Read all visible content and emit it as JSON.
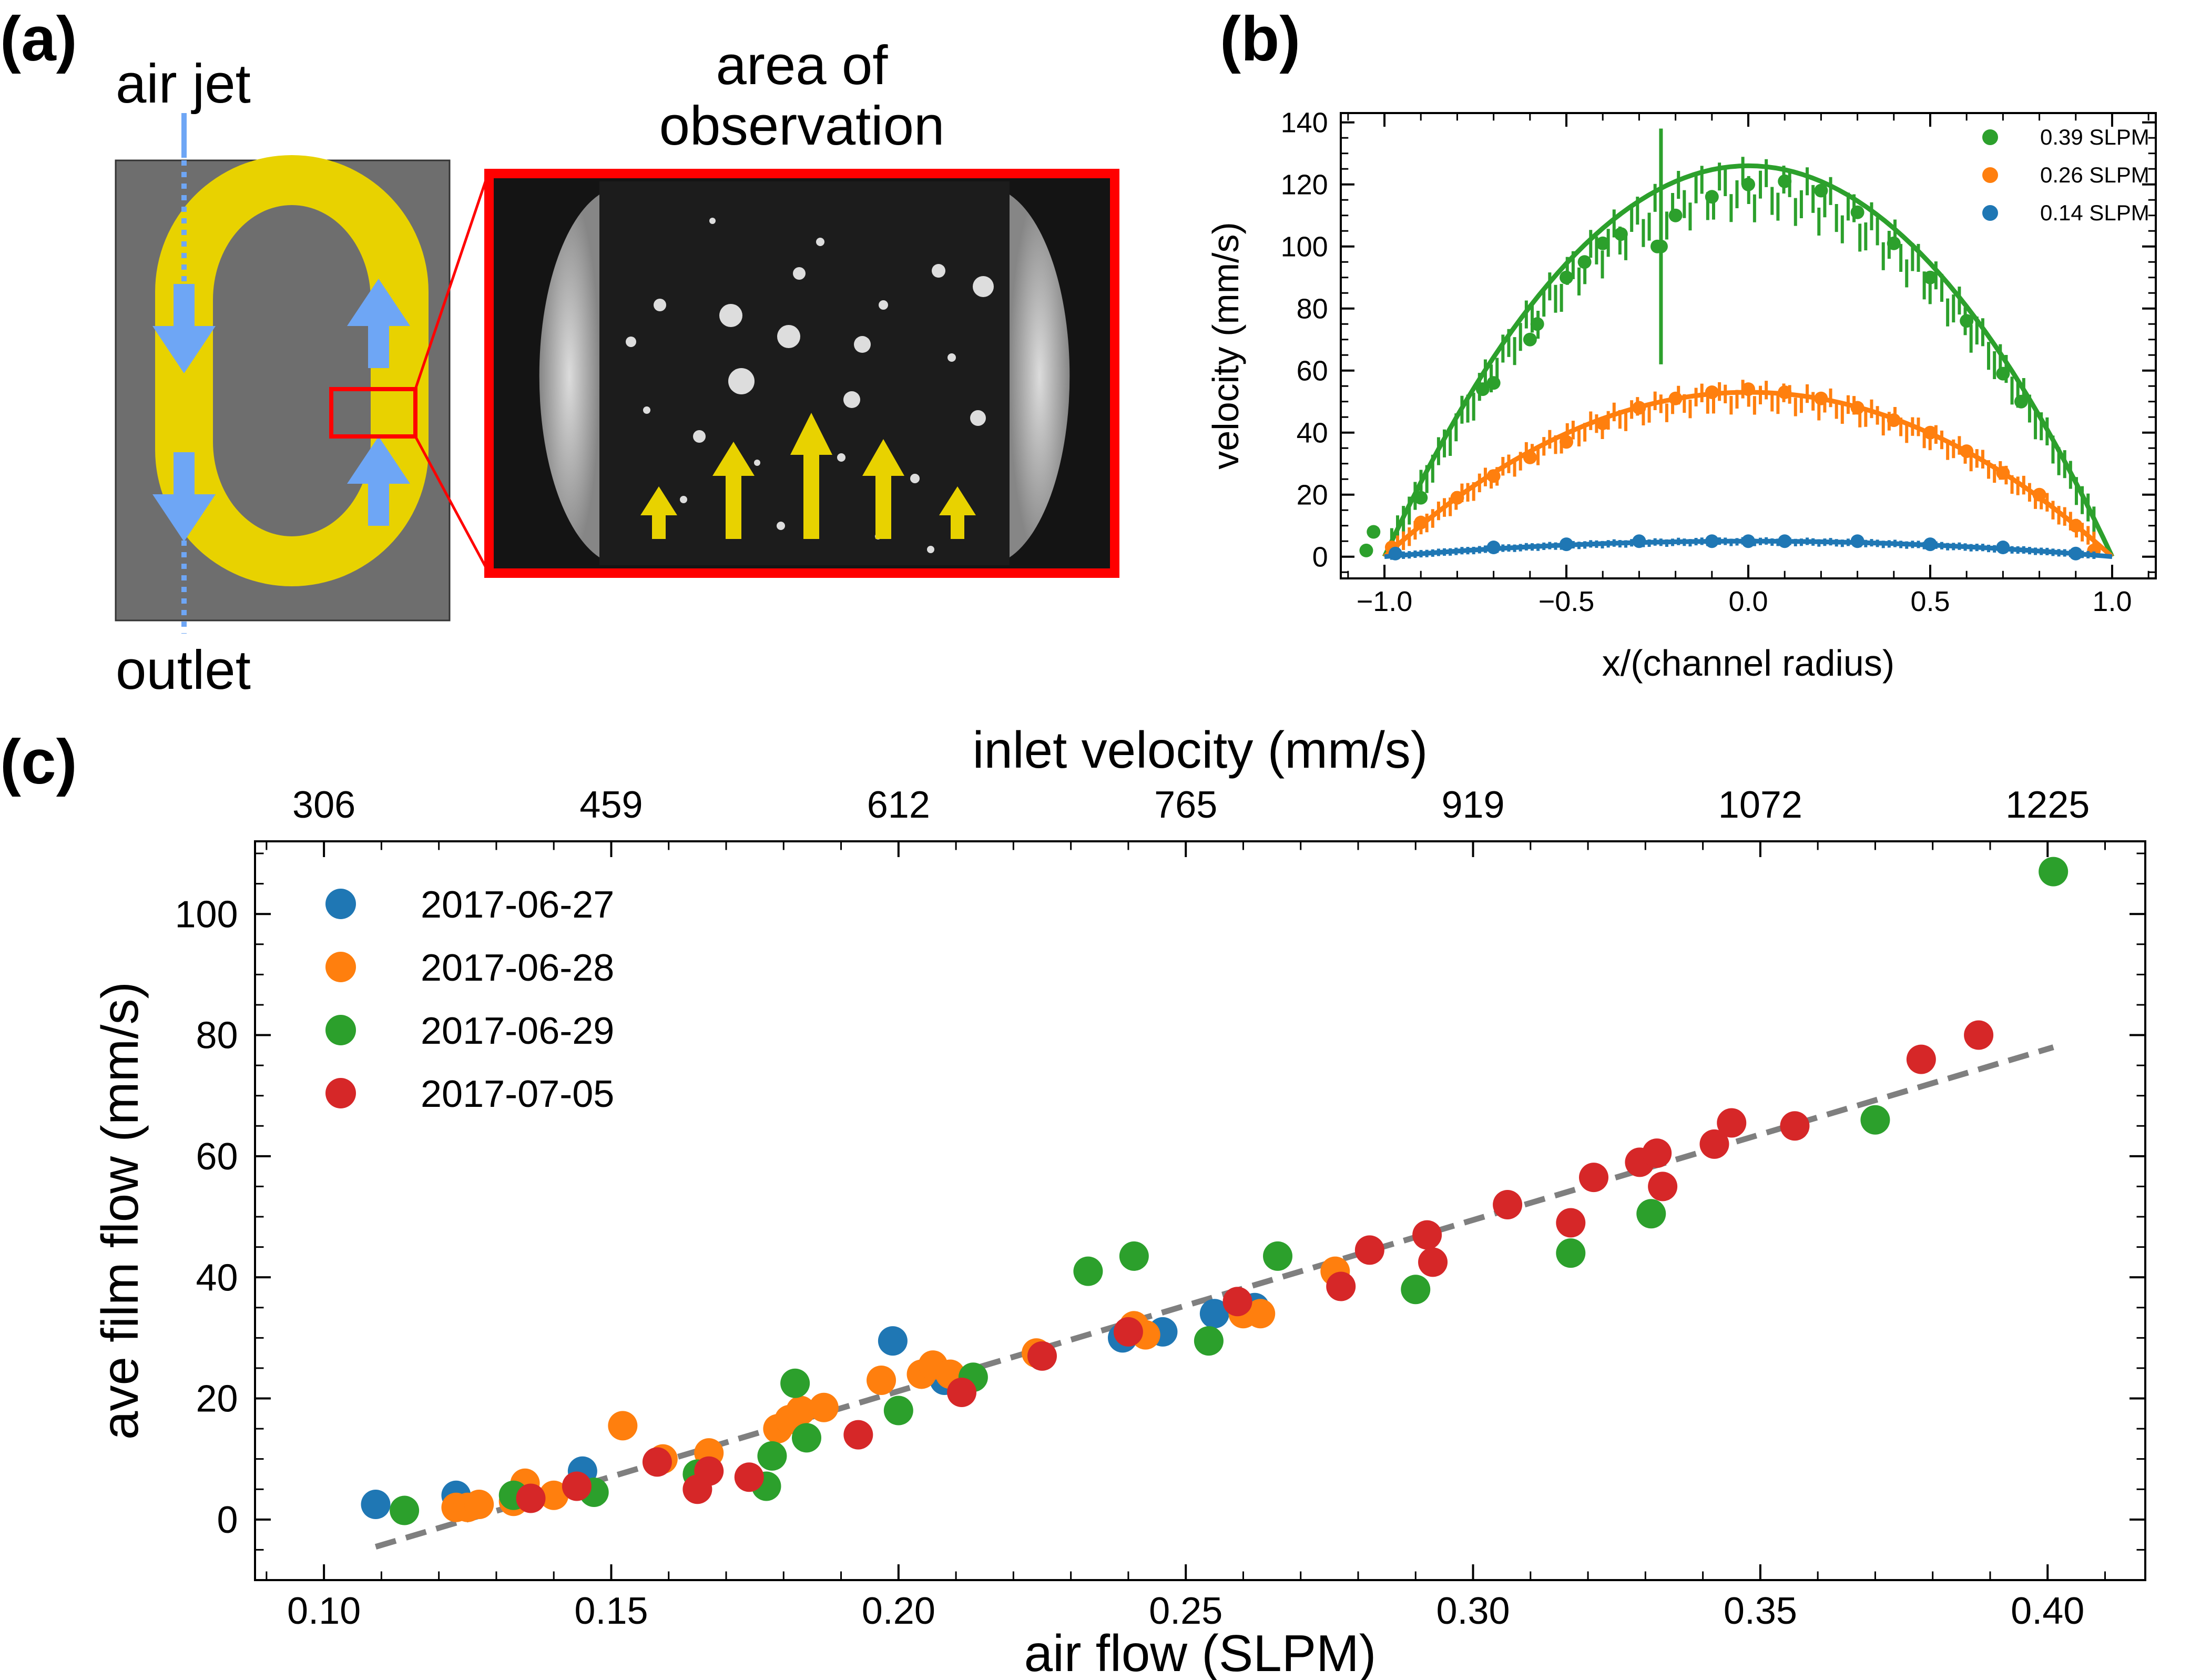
{
  "panels": {
    "a": {
      "label": "(a)",
      "air_jet_label": "air jet",
      "outlet_label": "outlet",
      "observation_title": [
        "area of",
        "observation"
      ],
      "colors": {
        "background": "#6e6e6e",
        "channel": "#e8d200",
        "arrows": "#6ea6f5",
        "highlight": "#ff0000",
        "photo_bg": "#141414"
      }
    },
    "b": {
      "label": "(b)"
    },
    "c": {
      "label": "(c)"
    }
  },
  "chart_data": [
    {
      "id": "b",
      "type": "scatter",
      "xlabel": "x/(channel radius)",
      "ylabel": "velocity (mm/s)",
      "xlim": [
        -1.12,
        1.12
      ],
      "ylim": [
        -7,
        143
      ],
      "xticks": [
        -1.0,
        -0.5,
        0.0,
        0.5,
        1.0
      ],
      "xtick_labels": [
        "−1.0",
        "−0.5",
        "0.0",
        "0.5",
        "1.0"
      ],
      "yticks": [
        0,
        20,
        40,
        60,
        80,
        100,
        120,
        140
      ],
      "grid": false,
      "legend_position": "top-right",
      "series": [
        {
          "name": "0.39 SLPM",
          "color": "#2ca02c",
          "peak": 122,
          "fit_peak": 126,
          "points": [
            [
              -1.05,
              2
            ],
            [
              -1.03,
              8
            ],
            [
              -0.9,
              19
            ],
            [
              -0.73,
              54
            ],
            [
              -0.7,
              56
            ],
            [
              -0.6,
              70
            ],
            [
              -0.58,
              75
            ],
            [
              -0.5,
              90
            ],
            [
              -0.45,
              95
            ],
            [
              -0.4,
              101
            ],
            [
              -0.35,
              104
            ],
            [
              -0.25,
              100
            ],
            [
              -0.2,
              110
            ],
            [
              -0.1,
              116
            ],
            [
              0.0,
              120
            ],
            [
              0.1,
              121
            ],
            [
              0.2,
              118
            ],
            [
              0.3,
              111
            ],
            [
              0.4,
              101
            ],
            [
              0.5,
              90
            ],
            [
              0.6,
              76
            ],
            [
              0.7,
              59
            ],
            [
              0.75,
              50
            ]
          ],
          "outlier": {
            "x": -0.24,
            "y": 100,
            "err": 38
          }
        },
        {
          "name": "0.26 SLPM",
          "color": "#ff7f0e",
          "peak": 53,
          "points": [
            [
              -0.98,
              3
            ],
            [
              -0.9,
              11
            ],
            [
              -0.8,
              19
            ],
            [
              -0.7,
              26
            ],
            [
              -0.6,
              32
            ],
            [
              -0.5,
              37
            ],
            [
              -0.4,
              43
            ],
            [
              -0.3,
              48
            ],
            [
              -0.2,
              51
            ],
            [
              -0.1,
              53
            ],
            [
              0.0,
              54
            ],
            [
              0.1,
              53
            ],
            [
              0.2,
              51
            ],
            [
              0.3,
              48
            ],
            [
              0.4,
              44
            ],
            [
              0.5,
              40
            ],
            [
              0.6,
              34
            ],
            [
              0.7,
              27
            ],
            [
              0.8,
              20
            ],
            [
              0.9,
              10
            ],
            [
              0.95,
              2
            ]
          ]
        },
        {
          "name": "0.14 SLPM",
          "color": "#1f77b4",
          "peak": 5,
          "points": [
            [
              -0.97,
              1
            ],
            [
              -0.7,
              3
            ],
            [
              -0.5,
              4
            ],
            [
              -0.3,
              5
            ],
            [
              -0.1,
              5
            ],
            [
              0.0,
              5
            ],
            [
              0.1,
              5
            ],
            [
              0.3,
              5
            ],
            [
              0.5,
              4
            ],
            [
              0.7,
              3
            ],
            [
              0.9,
              1
            ]
          ]
        }
      ]
    },
    {
      "id": "c",
      "type": "scatter",
      "xlabel": "air flow (SLPM)",
      "ylabel": "ave film flow (mm/s)",
      "top_xlabel": "inlet velocity (mm/s)",
      "xlim": [
        0.088,
        0.417
      ],
      "ylim": [
        -10,
        112
      ],
      "xticks": [
        0.1,
        0.15,
        0.2,
        0.25,
        0.3,
        0.35,
        0.4
      ],
      "xtick_labels": [
        "0.10",
        "0.15",
        "0.20",
        "0.25",
        "0.30",
        "0.35",
        "0.40"
      ],
      "yticks": [
        0,
        20,
        40,
        60,
        80,
        100
      ],
      "top_ticks": [
        0.1,
        0.15,
        0.2,
        0.25,
        0.3,
        0.35,
        0.4
      ],
      "top_tick_labels": [
        "306",
        "459",
        "612",
        "765",
        "919",
        "1072",
        "1225"
      ],
      "grid": false,
      "legend_position": "top-left",
      "fit_line": {
        "x": [
          0.109,
          0.401
        ],
        "y": [
          -4.5,
          78
        ],
        "color": "#7f7f7f"
      },
      "series": [
        {
          "name": "2017-06-27",
          "color": "#1f77b4",
          "points": [
            [
              0.109,
              2.5
            ],
            [
              0.123,
              4
            ],
            [
              0.145,
              8
            ],
            [
              0.199,
              29.5
            ],
            [
              0.208,
              23
            ],
            [
              0.239,
              30
            ],
            [
              0.246,
              31
            ],
            [
              0.255,
              34
            ],
            [
              0.262,
              35
            ]
          ]
        },
        {
          "name": "2017-06-28",
          "color": "#ff7f0e",
          "points": [
            [
              0.123,
              2
            ],
            [
              0.125,
              2
            ],
            [
              0.127,
              2.5
            ],
            [
              0.133,
              3
            ],
            [
              0.135,
              6
            ],
            [
              0.14,
              4
            ],
            [
              0.152,
              15.5
            ],
            [
              0.159,
              10
            ],
            [
              0.167,
              11
            ],
            [
              0.179,
              15
            ],
            [
              0.181,
              16.5
            ],
            [
              0.183,
              18
            ],
            [
              0.187,
              18.5
            ],
            [
              0.197,
              23
            ],
            [
              0.204,
              24
            ],
            [
              0.206,
              25.5
            ],
            [
              0.209,
              24
            ],
            [
              0.224,
              27.5
            ],
            [
              0.241,
              32
            ],
            [
              0.243,
              30.5
            ],
            [
              0.26,
              34
            ],
            [
              0.263,
              34
            ],
            [
              0.276,
              41
            ]
          ]
        },
        {
          "name": "2017-06-29",
          "color": "#2ca02c",
          "points": [
            [
              0.114,
              1.5
            ],
            [
              0.133,
              4
            ],
            [
              0.147,
              4.5
            ],
            [
              0.165,
              7.5
            ],
            [
              0.177,
              5.5
            ],
            [
              0.178,
              10.5
            ],
            [
              0.182,
              22.5
            ],
            [
              0.184,
              13.5
            ],
            [
              0.2,
              18
            ],
            [
              0.213,
              23.5
            ],
            [
              0.233,
              41
            ],
            [
              0.241,
              43.5
            ],
            [
              0.254,
              29.5
            ],
            [
              0.266,
              43.5
            ],
            [
              0.29,
              38
            ],
            [
              0.317,
              44
            ],
            [
              0.331,
              50.5
            ],
            [
              0.37,
              66
            ],
            [
              0.401,
              107
            ]
          ]
        },
        {
          "name": "2017-07-05",
          "color": "#d62728",
          "points": [
            [
              0.136,
              3.5
            ],
            [
              0.144,
              5.5
            ],
            [
              0.158,
              9.5
            ],
            [
              0.165,
              5
            ],
            [
              0.167,
              8
            ],
            [
              0.174,
              7
            ],
            [
              0.193,
              14
            ],
            [
              0.211,
              21
            ],
            [
              0.225,
              27
            ],
            [
              0.24,
              31
            ],
            [
              0.259,
              36
            ],
            [
              0.277,
              38.5
            ],
            [
              0.282,
              44.5
            ],
            [
              0.292,
              47
            ],
            [
              0.293,
              42.5
            ],
            [
              0.306,
              52
            ],
            [
              0.317,
              49
            ],
            [
              0.321,
              56.5
            ],
            [
              0.329,
              59
            ],
            [
              0.332,
              60.5
            ],
            [
              0.333,
              55
            ],
            [
              0.342,
              62
            ],
            [
              0.345,
              65.5
            ],
            [
              0.356,
              65
            ],
            [
              0.378,
              76
            ],
            [
              0.388,
              80
            ]
          ]
        }
      ]
    }
  ]
}
